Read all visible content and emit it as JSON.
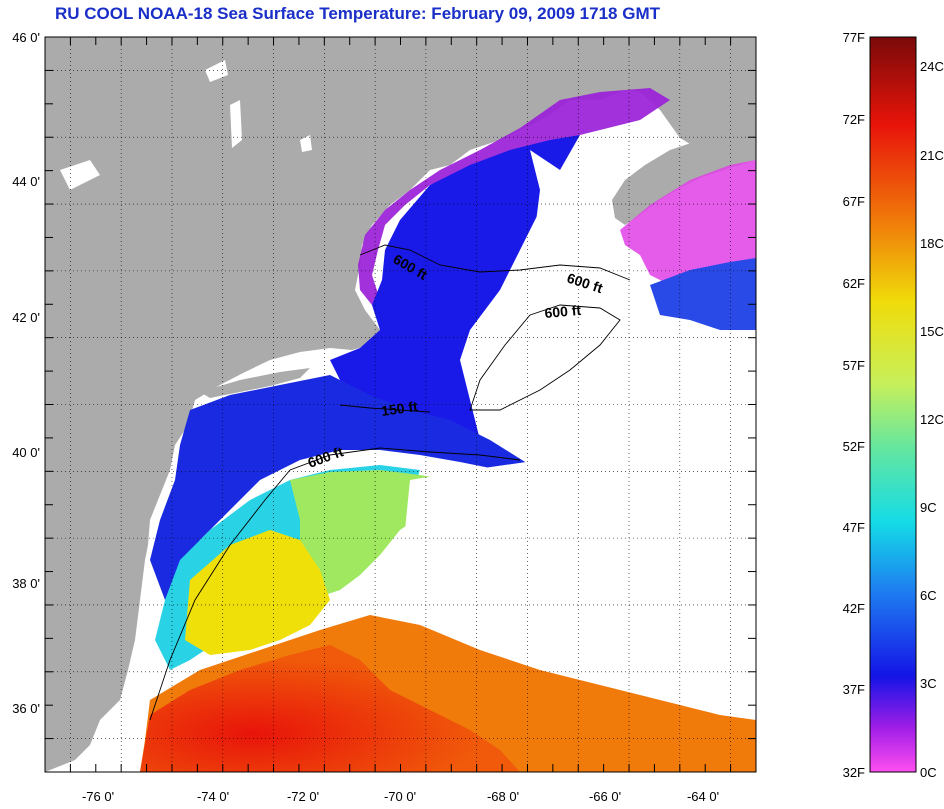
{
  "title": "RU COOL  NOAA-18  Sea Surface Temperature:  February 09, 2009 1718 GMT",
  "lat_labels": [
    "46 0'",
    "44 0'",
    "42 0'",
    "40 0'",
    "38 0'",
    "36 0'"
  ],
  "lon_labels": [
    "-76 0'",
    "-74 0'",
    "-72 0'",
    "-70 0'",
    "-68 0'",
    "-66 0'",
    "-64 0'"
  ],
  "lat_values": [
    46,
    44,
    42,
    40,
    38,
    36
  ],
  "lon_values": [
    -76,
    -74,
    -72,
    -70,
    -68,
    -66,
    -64
  ],
  "extent": {
    "lon_min": -77,
    "lon_max": -63,
    "lat_min": 35,
    "lat_max": 46
  },
  "contour_labels": [
    {
      "text": "600 ft"
    },
    {
      "text": "600 ft"
    },
    {
      "text": "600 ft"
    },
    {
      "text": "150 ft"
    },
    {
      "text": "600 ft"
    }
  ],
  "legend": {
    "fahrenheit": [
      "77F",
      "72F",
      "67F",
      "62F",
      "57F",
      "52F",
      "47F",
      "42F",
      "37F",
      "32F"
    ],
    "celsius": [
      "24C",
      "21C",
      "18C",
      "15C",
      "12C",
      "9C",
      "6C",
      "3C",
      "0C"
    ],
    "temp_min_f": 32,
    "temp_max_f": 77
  },
  "colors": {
    "land": "#ababab",
    "ocean_cloud": "#ffffff",
    "title": "#1a2fc8",
    "warm": "#e8140a",
    "cold": "#1a1ae8",
    "coldest": "#d21ed2"
  }
}
